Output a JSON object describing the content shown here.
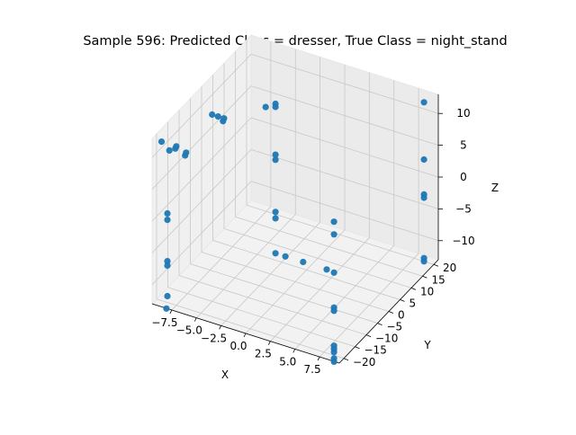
{
  "chart_data": {
    "type": "scatter",
    "projection": "3d",
    "title": "Sample 596: Predicted Class = dresser, True Class = night_stand",
    "xlabel": "X",
    "ylabel": "Y",
    "zlabel": "Z",
    "xlim": [
      -9.5,
      9.5
    ],
    "ylim": [
      -22,
      22
    ],
    "zlim": [
      -13,
      13
    ],
    "x_ticks": [
      -7.5,
      -5.0,
      -2.5,
      0.0,
      2.5,
      5.0,
      7.5
    ],
    "x_tick_labels": [
      "−7.5",
      "−5.0",
      "−2.5",
      "0.0",
      "2.5",
      "5.0",
      "7.5"
    ],
    "y_ticks": [
      -20,
      -15,
      -10,
      -5,
      0,
      5,
      10,
      15,
      20
    ],
    "y_tick_labels": [
      "−20",
      "−15",
      "−10",
      "−5",
      "0",
      "5",
      "10",
      "15",
      "20"
    ],
    "z_ticks": [
      -10,
      -5,
      0,
      5,
      10
    ],
    "z_tick_labels": [
      "−10",
      "−5",
      "0",
      "5",
      "10"
    ],
    "grid": true,
    "marker_color": "#1f77b4",
    "points": [
      {
        "x": -9.0,
        "y": -20.0,
        "z": 12.0
      },
      {
        "x": -8.2,
        "y": -20.0,
        "z": 11.0
      },
      {
        "x": -7.6,
        "y": -20.0,
        "z": 11.6
      },
      {
        "x": -7.5,
        "y": -20.0,
        "z": 12.0
      },
      {
        "x": -6.6,
        "y": -20.0,
        "z": 11.0
      },
      {
        "x": -6.5,
        "y": -20.0,
        "z": 11.5
      },
      {
        "x": -8.4,
        "y": -20.0,
        "z": 1.0
      },
      {
        "x": -8.4,
        "y": -20.0,
        "z": 0.0
      },
      {
        "x": -8.4,
        "y": -20.0,
        "z": -6.5
      },
      {
        "x": -8.4,
        "y": -20.0,
        "z": -7.2
      },
      {
        "x": -8.4,
        "y": -20.0,
        "z": -12.0
      },
      {
        "x": -8.5,
        "y": -20.0,
        "z": -14.0
      },
      {
        "x": -6.6,
        "y": -8.0,
        "z": 13.0
      },
      {
        "x": -6.0,
        "y": -8.0,
        "z": 13.0
      },
      {
        "x": -5.5,
        "y": -8.0,
        "z": 12.5
      },
      {
        "x": -5.4,
        "y": -8.0,
        "z": 13.0
      },
      {
        "x": -3.0,
        "y": 0.0,
        "z": 13.0
      },
      {
        "x": -2.0,
        "y": 0.0,
        "z": 14.0
      },
      {
        "x": -2.0,
        "y": 0.0,
        "z": 13.5
      },
      {
        "x": -2.0,
        "y": 0.0,
        "z": 6.0
      },
      {
        "x": -2.0,
        "y": 0.0,
        "z": 5.2
      },
      {
        "x": -2.0,
        "y": 0.0,
        "z": -3.0
      },
      {
        "x": -2.0,
        "y": 0.0,
        "z": -4.0
      },
      {
        "x": -2.0,
        "y": 0.0,
        "z": -9.5
      },
      {
        "x": -1.0,
        "y": 0.0,
        "z": -9.5
      },
      {
        "x": 0.8,
        "y": 0.0,
        "z": -9.5
      },
      {
        "x": 3.2,
        "y": 0.0,
        "z": -9.5
      },
      {
        "x": 8.5,
        "y": -20.0,
        "z": -12.5
      },
      {
        "x": 8.5,
        "y": -20.0,
        "z": -11.5
      },
      {
        "x": 8.5,
        "y": -20.0,
        "z": -13.5
      },
      {
        "x": 8.5,
        "y": -20.0,
        "z": -14.0
      },
      {
        "x": 8.5,
        "y": -20.0,
        "z": -12.0
      },
      {
        "x": 8.5,
        "y": -20.0,
        "z": -6.0
      },
      {
        "x": 8.5,
        "y": -20.0,
        "z": -5.5
      },
      {
        "x": 8.5,
        "y": -20.0,
        "z": 0.0
      },
      {
        "x": 8.5,
        "y": -20.0,
        "z": 8.0
      },
      {
        "x": 8.5,
        "y": -20.0,
        "z": 6.0
      },
      {
        "x": 8.5,
        "y": 20.0,
        "z": 12.0
      },
      {
        "x": 8.5,
        "y": 20.0,
        "z": 3.0
      },
      {
        "x": 8.5,
        "y": 20.0,
        "z": -2.5
      },
      {
        "x": 8.5,
        "y": 20.0,
        "z": -3.0
      },
      {
        "x": 8.5,
        "y": 20.0,
        "z": -12.5
      },
      {
        "x": 8.5,
        "y": 20.0,
        "z": -13.0
      }
    ]
  }
}
